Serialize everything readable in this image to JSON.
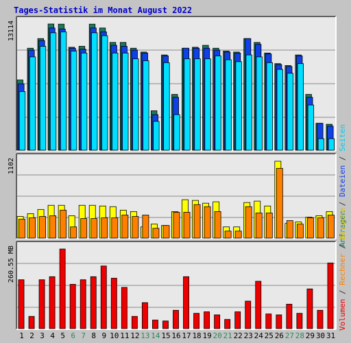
{
  "title": "Tages-Statistik im Monat August 2022",
  "colors": {
    "background": "#c4c4c4",
    "plot_background": "#e8e8e8",
    "frame_dark": "#606060",
    "title": "#0000cc",
    "anfragen": "#1a7a5c",
    "dateien": "#1040e8",
    "seiten": "#00dfff",
    "besuche": "#ffff00",
    "rechner": "#ff8000",
    "volumen": "#ee0000",
    "day_normal": "#000000",
    "day_weekend": "#2a8a5a"
  },
  "legend": {
    "right_top": [
      {
        "text": "Anfragen",
        "color": "#1a7a5c"
      },
      {
        "text": " / ",
        "color": "#333333"
      },
      {
        "text": "Dateien",
        "color": "#1040e8"
      },
      {
        "text": " / ",
        "color": "#333333"
      },
      {
        "text": "Seiten",
        "color": "#00cfef"
      }
    ],
    "right_bottom": [
      {
        "text": "Volumen",
        "color": "#ee0000"
      },
      {
        "text": " / ",
        "color": "#333333"
      },
      {
        "text": "Rechner",
        "color": "#ff8000"
      },
      {
        "text": " / ",
        "color": "#333333"
      },
      {
        "text": "Besuche",
        "color": "#d0c000"
      }
    ]
  },
  "chart_data": [
    {
      "type": "bar",
      "panel": "hits",
      "ymax_label": "13114",
      "ymax": 13114,
      "categories": [
        "1",
        "2",
        "3",
        "4",
        "5",
        "6",
        "7",
        "8",
        "9",
        "10",
        "11",
        "12",
        "13",
        "14",
        "15",
        "16",
        "17",
        "18",
        "19",
        "20",
        "21",
        "22",
        "23",
        "24",
        "25",
        "26",
        "27",
        "28",
        "29",
        "30",
        "31"
      ],
      "weekend_days": [
        "6",
        "7",
        "13",
        "14",
        "20",
        "21",
        "27",
        "28"
      ],
      "series": [
        {
          "name": "Anfragen",
          "values": [
            7300,
            10600,
            11600,
            13114,
            13100,
            10700,
            10800,
            13100,
            12700,
            11200,
            11200,
            10600,
            10200,
            4100,
            9900,
            5800,
            10600,
            10700,
            10900,
            10600,
            10300,
            10200,
            11600,
            11200,
            10100,
            9000,
            8800,
            9900,
            5800,
            2800,
            2700
          ]
        },
        {
          "name": "Dateien",
          "values": [
            6900,
            10400,
            11400,
            12700,
            12600,
            10600,
            10500,
            12700,
            12300,
            10900,
            10800,
            10400,
            10100,
            3700,
            9800,
            5500,
            10600,
            10600,
            10600,
            10400,
            10200,
            10100,
            11600,
            11000,
            10000,
            8900,
            8700,
            9800,
            5500,
            2800,
            2500
          ]
        },
        {
          "name": "Seiten",
          "values": [
            6100,
            9700,
            10800,
            12200,
            12300,
            10300,
            10100,
            12200,
            11900,
            10100,
            10100,
            9500,
            9300,
            3000,
            9100,
            3700,
            9500,
            9500,
            9500,
            9800,
            9400,
            9200,
            9900,
            9700,
            9100,
            8400,
            8000,
            9000,
            4700,
            1200,
            1200
          ]
        }
      ]
    },
    {
      "type": "bar",
      "panel": "visits",
      "ymax_label": "1102",
      "ymax": 1102,
      "categories": [
        "1",
        "2",
        "3",
        "4",
        "5",
        "6",
        "7",
        "8",
        "9",
        "10",
        "11",
        "12",
        "13",
        "14",
        "15",
        "16",
        "17",
        "18",
        "19",
        "20",
        "21",
        "22",
        "23",
        "24",
        "25",
        "26",
        "27",
        "28",
        "29",
        "30",
        "31"
      ],
      "weekend_days": [
        "6",
        "7",
        "13",
        "14",
        "20",
        "21",
        "27",
        "28"
      ],
      "series": [
        {
          "name": "Besuche",
          "values": [
            310,
            350,
            410,
            470,
            470,
            320,
            470,
            470,
            460,
            450,
            400,
            380,
            160,
            200,
            180,
            380,
            550,
            540,
            500,
            520,
            160,
            160,
            510,
            530,
            460,
            1102,
            210,
            230,
            300,
            320,
            380
          ]
        },
        {
          "name": "Rechner",
          "values": [
            270,
            290,
            310,
            320,
            400,
            160,
            280,
            280,
            290,
            290,
            330,
            310,
            330,
            140,
            180,
            370,
            370,
            480,
            450,
            380,
            100,
            100,
            450,
            360,
            360,
            1000,
            250,
            200,
            290,
            290,
            330
          ]
        }
      ]
    },
    {
      "type": "bar",
      "panel": "volume",
      "ymax_label": "260.55 MB",
      "ymax": 260.55,
      "categories": [
        "1",
        "2",
        "3",
        "4",
        "5",
        "6",
        "7",
        "8",
        "9",
        "10",
        "11",
        "12",
        "13",
        "14",
        "15",
        "16",
        "17",
        "18",
        "19",
        "20",
        "21",
        "22",
        "23",
        "24",
        "25",
        "26",
        "27",
        "28",
        "29",
        "30",
        "31"
      ],
      "weekend_days": [
        "6",
        "7",
        "13",
        "14",
        "20",
        "21",
        "27",
        "28"
      ],
      "series": [
        {
          "name": "Volumen",
          "values": [
            160,
            40,
            160,
            170,
            260.55,
            145,
            160,
            170,
            205,
            165,
            135,
            40,
            85,
            28,
            25,
            60,
            170,
            50,
            55,
            45,
            30,
            55,
            90,
            155,
            48,
            45,
            80,
            50,
            130,
            60,
            215
          ]
        }
      ]
    }
  ]
}
